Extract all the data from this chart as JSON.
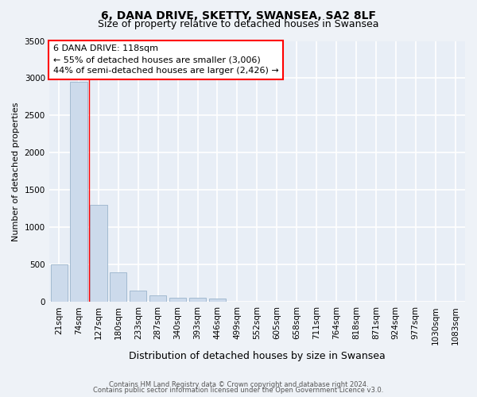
{
  "title_line1": "6, DANA DRIVE, SKETTY, SWANSEA, SA2 8LF",
  "title_line2": "Size of property relative to detached houses in Swansea",
  "xlabel": "Distribution of detached houses by size in Swansea",
  "ylabel": "Number of detached properties",
  "categories": [
    "21sqm",
    "74sqm",
    "127sqm",
    "180sqm",
    "233sqm",
    "287sqm",
    "340sqm",
    "393sqm",
    "446sqm",
    "499sqm",
    "552sqm",
    "605sqm",
    "658sqm",
    "711sqm",
    "764sqm",
    "818sqm",
    "871sqm",
    "924sqm",
    "977sqm",
    "1030sqm",
    "1083sqm"
  ],
  "values": [
    500,
    2950,
    1300,
    400,
    150,
    90,
    60,
    50,
    40,
    0,
    0,
    0,
    0,
    0,
    0,
    0,
    0,
    0,
    0,
    0,
    0
  ],
  "bar_color": "#ccdaeb",
  "bar_edge_color": "#9ab4cc",
  "red_line_x": 1.5,
  "annotation_text": "6 DANA DRIVE: 118sqm\n← 55% of detached houses are smaller (3,006)\n44% of semi-detached houses are larger (2,426) →",
  "annotation_box_color": "white",
  "annotation_box_edge": "red",
  "ylim": [
    0,
    3500
  ],
  "yticks": [
    0,
    500,
    1000,
    1500,
    2000,
    2500,
    3000,
    3500
  ],
  "footer_line1": "Contains HM Land Registry data © Crown copyright and database right 2024.",
  "footer_line2": "Contains public sector information licensed under the Open Government Licence v3.0.",
  "bg_color": "#eef2f7",
  "plot_bg_color": "#e8eef6",
  "grid_color": "white",
  "title_fontsize": 10,
  "subtitle_fontsize": 9,
  "ylabel_fontsize": 8,
  "xlabel_fontsize": 9,
  "tick_fontsize": 7.5,
  "annot_fontsize": 8,
  "footer_fontsize": 6
}
